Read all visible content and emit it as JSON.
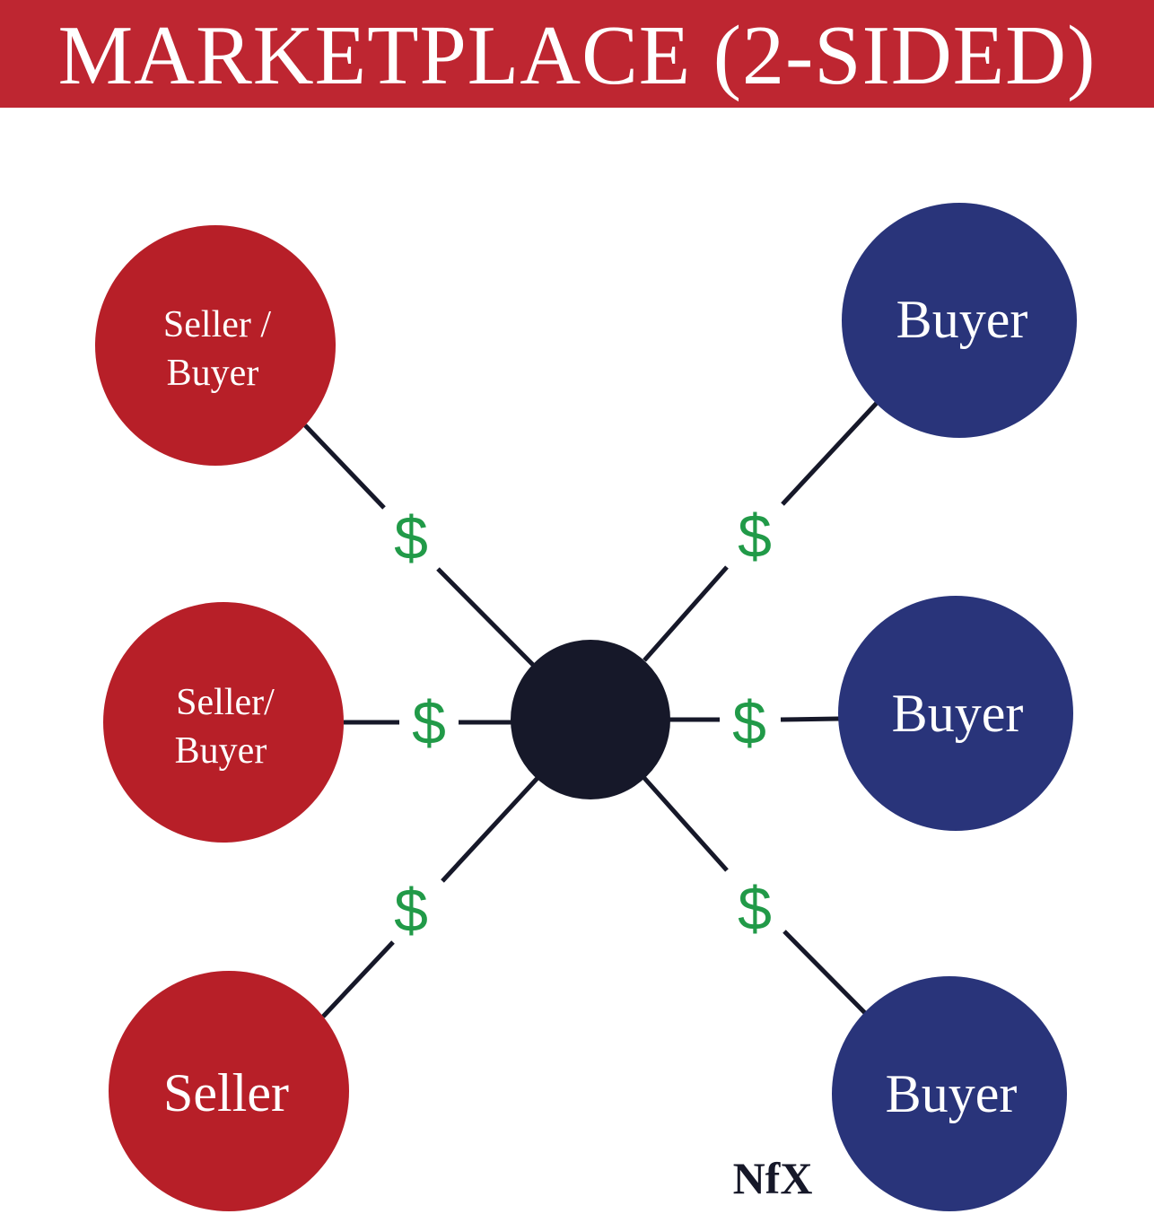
{
  "title": "MARKETPLACE (2-SIDED)",
  "colors": {
    "title_bar": "#be2631",
    "seller_node": "#b71f28",
    "buyer_node": "#29347a",
    "hub_node": "#161829",
    "connector": "#161829",
    "money": "#219a48"
  },
  "nodes": [
    {
      "id": "left-top",
      "side": "seller",
      "lines": [
        "Seller /",
        "Buyer"
      ]
    },
    {
      "id": "left-middle",
      "side": "seller",
      "lines": [
        "Seller/",
        "Buyer"
      ]
    },
    {
      "id": "left-bottom",
      "side": "seller",
      "lines": [
        "Seller"
      ]
    },
    {
      "id": "right-top",
      "side": "buyer",
      "lines": [
        "Buyer"
      ]
    },
    {
      "id": "right-middle",
      "side": "buyer",
      "lines": [
        "Buyer"
      ]
    },
    {
      "id": "right-bottom",
      "side": "buyer",
      "lines": [
        "Buyer"
      ]
    }
  ],
  "edges": [
    {
      "from": "left-top",
      "label": "$"
    },
    {
      "from": "left-middle",
      "label": "$"
    },
    {
      "from": "left-bottom",
      "label": "$"
    },
    {
      "from": "right-top",
      "label": "$"
    },
    {
      "from": "right-middle",
      "label": "$"
    },
    {
      "from": "right-bottom",
      "label": "$"
    }
  ],
  "logo": "NfX"
}
